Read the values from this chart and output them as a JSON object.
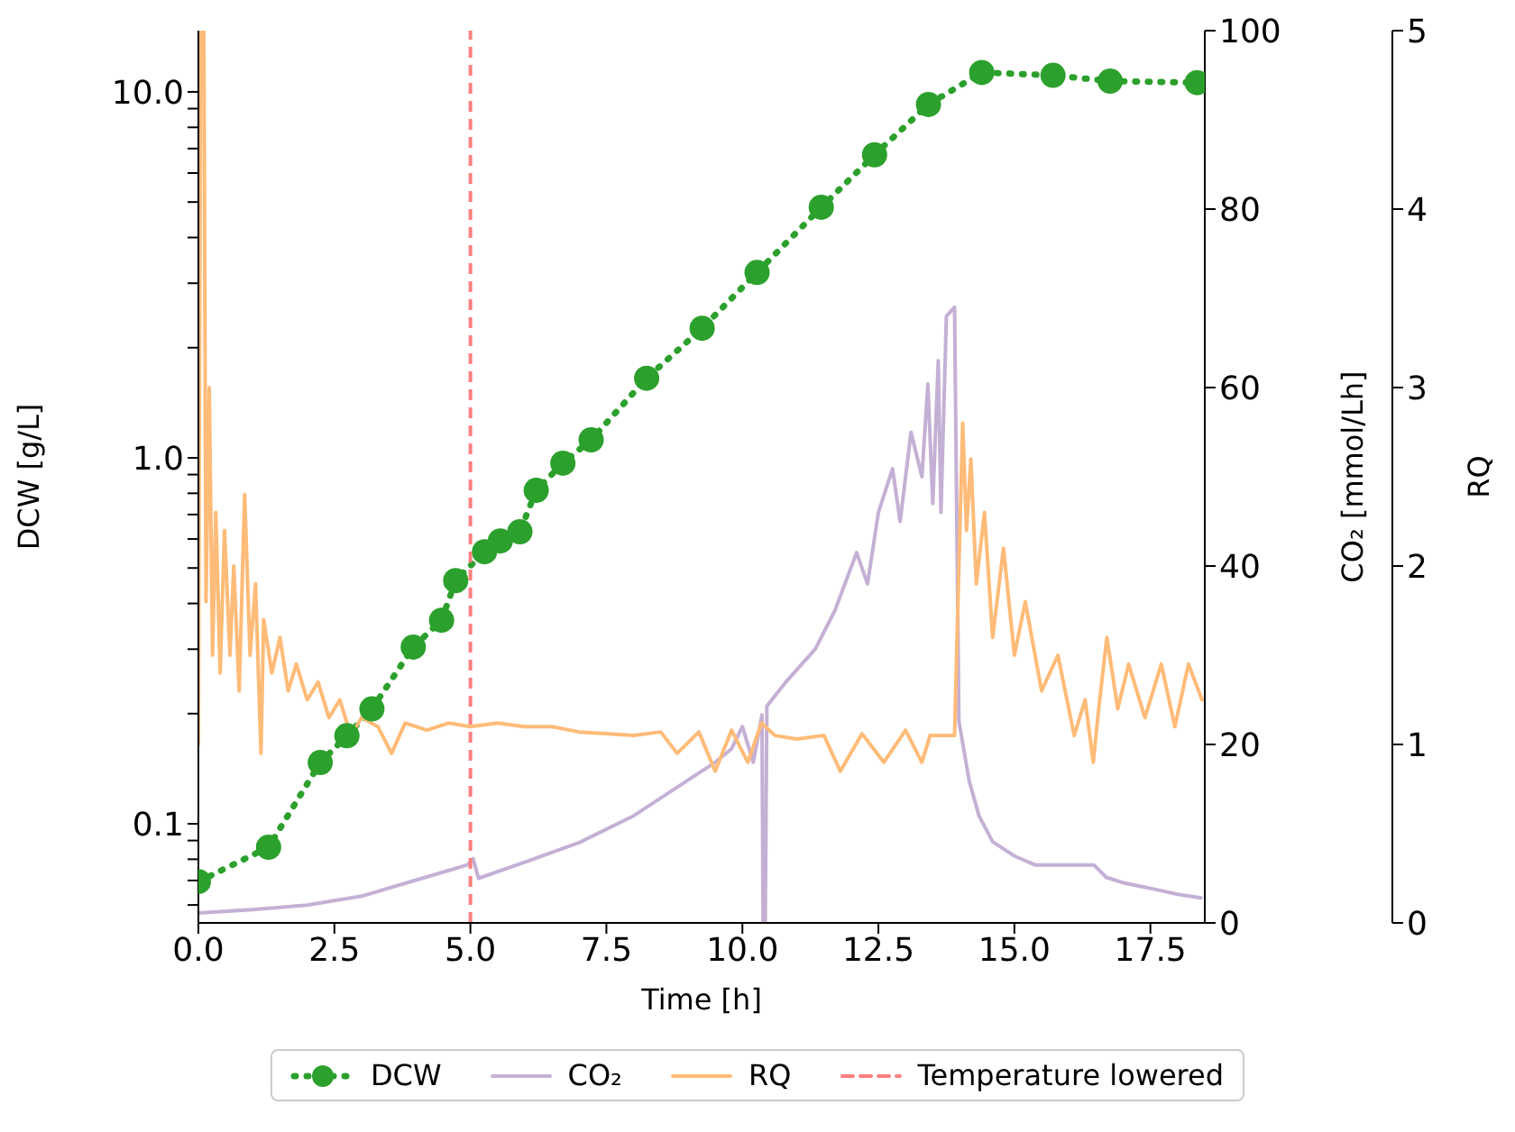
{
  "chart_data": {
    "type": "line",
    "xlabel": "Time [h]",
    "ylabel": "DCW [g/L]",
    "y2label": "CO₂ [mmol/Lh]",
    "y3label": "RQ",
    "log": "y",
    "grid": false,
    "legend": "bottom",
    "xlim": [
      0,
      18.5
    ],
    "xticks": [
      {
        "value": 0,
        "label": "0.0"
      },
      2.5,
      {
        "value": 5,
        "label": "5.0"
      },
      7.5,
      {
        "value": 10,
        "label": "10.0"
      },
      12.5,
      {
        "value": 15,
        "label": "15.0"
      },
      17.5
    ],
    "ylim": [
      0.0536,
      14.7
    ],
    "yticks": [
      {
        "value": 0.06,
        "label": null
      },
      {
        "value": 0.07,
        "label": null
      },
      {
        "value": 0.08,
        "label": null
      },
      {
        "value": 0.09,
        "label": null
      },
      0.1,
      {
        "value": 0.2,
        "label": null
      },
      {
        "value": 0.3,
        "label": null
      },
      {
        "value": 0.4,
        "label": null
      },
      {
        "value": 0.5,
        "label": null
      },
      {
        "value": 0.6,
        "label": null
      },
      {
        "value": 0.7,
        "label": null
      },
      {
        "value": 0.8,
        "label": null
      },
      {
        "value": 0.9,
        "label": null
      },
      {
        "value": 1,
        "label": "1.0"
      },
      {
        "value": 2,
        "label": null
      },
      {
        "value": 3,
        "label": null
      },
      {
        "value": 4,
        "label": null
      },
      {
        "value": 5,
        "label": null
      },
      {
        "value": 6,
        "label": null
      },
      {
        "value": 7,
        "label": null
      },
      {
        "value": 8,
        "label": null
      },
      {
        "value": 9,
        "label": null
      },
      {
        "value": 10,
        "label": "10.0"
      }
    ],
    "y2lim": [
      0,
      100
    ],
    "y2ticks": [
      0,
      20,
      40,
      60,
      80,
      100
    ],
    "y3lim": [
      0,
      5
    ],
    "y3ticks": [
      0,
      1,
      2,
      3,
      4,
      5
    ],
    "ref_lines": [
      {
        "axis": "x",
        "value": 5,
        "label": "Temperature lowered",
        "color": "#ff7f7f",
        "line_style": "dashed"
      }
    ],
    "series": [
      {
        "name": "DCW",
        "color": "#2ca02c",
        "marker": "circle",
        "line_style": "dotted",
        "x": [
          0.0,
          1.29,
          2.24,
          2.73,
          3.19,
          3.95,
          4.47,
          4.73,
          5.26,
          5.55,
          5.91,
          6.21,
          6.7,
          7.22,
          8.24,
          9.26,
          10.27,
          11.45,
          12.43,
          13.42,
          14.4,
          15.71,
          16.76,
          18.36
        ],
        "values": [
          0.0695,
          0.0863,
          0.147,
          0.174,
          0.206,
          0.304,
          0.36,
          0.462,
          0.554,
          0.593,
          0.628,
          0.815,
          0.967,
          1.12,
          1.65,
          2.26,
          3.21,
          4.84,
          6.73,
          9.24,
          11.3,
          11.1,
          10.7,
          10.6
        ]
      },
      {
        "name": "CO₂",
        "axis": "y2",
        "color": "#c5b0d5",
        "marker": "none",
        "line_style": "solid",
        "x": [
          0.0,
          1.0,
          2.0,
          3.0,
          4.0,
          4.95,
          5.05,
          5.15,
          6.0,
          7.0,
          8.0,
          9.0,
          9.5,
          9.8,
          10.0,
          10.2,
          10.36,
          10.38,
          10.42,
          10.45,
          10.8,
          11.34,
          11.7,
          12.1,
          12.3,
          12.5,
          12.76,
          12.9,
          13.1,
          13.3,
          13.41,
          13.5,
          13.6,
          13.65,
          13.75,
          13.9,
          13.98,
          14.17,
          14.35,
          14.6,
          15.0,
          15.38,
          16.0,
          16.46,
          16.69,
          17.0,
          17.56,
          18.0,
          18.43
        ],
        "values": [
          1.1,
          1.5,
          2.0,
          3.0,
          4.8,
          6.5,
          7.2,
          5.0,
          6.8,
          9.0,
          12.0,
          16.0,
          18.0,
          19.5,
          22.0,
          18.0,
          23.3,
          0,
          0,
          24.3,
          27.0,
          30.7,
          35.0,
          41.5,
          38.0,
          46.0,
          50.9,
          45.0,
          55.0,
          50.0,
          60.4,
          47.0,
          63.0,
          46.0,
          68.0,
          69.0,
          22.6,
          15.9,
          12.0,
          9.1,
          7.5,
          6.5,
          6.5,
          6.5,
          5.1,
          4.5,
          3.8,
          3.2,
          2.8
        ]
      },
      {
        "name": "RQ",
        "axis": "y3",
        "color": "#ffbb78",
        "marker": "none",
        "line_style": "solid",
        "x": [
          0.0,
          0.04,
          0.1,
          0.14,
          0.2,
          0.26,
          0.32,
          0.4,
          0.48,
          0.58,
          0.65,
          0.75,
          0.85,
          0.95,
          1.05,
          1.15,
          1.2,
          1.35,
          1.5,
          1.65,
          1.8,
          2.0,
          2.2,
          2.4,
          2.6,
          2.8,
          3.0,
          3.3,
          3.55,
          3.8,
          4.2,
          4.6,
          5.0,
          5.5,
          6.0,
          6.5,
          7.0,
          7.5,
          8.0,
          8.5,
          8.8,
          9.2,
          9.5,
          9.8,
          10.1,
          10.35,
          10.6,
          11.0,
          11.5,
          11.8,
          12.2,
          12.6,
          13.0,
          13.3,
          13.45,
          13.9,
          13.98,
          14.05,
          14.12,
          14.2,
          14.3,
          14.45,
          14.6,
          14.8,
          15.0,
          15.2,
          15.5,
          15.8,
          16.1,
          16.3,
          16.45,
          16.55,
          16.7,
          16.9,
          17.1,
          17.4,
          17.7,
          17.95,
          18.2,
          18.45
        ],
        "values": [
          1.0,
          5.0,
          5.0,
          1.8,
          3.0,
          1.5,
          2.3,
          1.4,
          2.2,
          1.5,
          2.0,
          1.3,
          2.4,
          1.5,
          1.9,
          0.95,
          1.7,
          1.4,
          1.6,
          1.3,
          1.45,
          1.25,
          1.35,
          1.15,
          1.25,
          1.05,
          1.15,
          1.1,
          0.95,
          1.12,
          1.08,
          1.12,
          1.1,
          1.12,
          1.1,
          1.1,
          1.07,
          1.06,
          1.05,
          1.07,
          0.95,
          1.07,
          0.85,
          1.08,
          0.9,
          1.12,
          1.05,
          1.03,
          1.05,
          0.85,
          1.06,
          0.9,
          1.08,
          0.9,
          1.05,
          1.05,
          2.0,
          2.8,
          2.2,
          2.6,
          1.9,
          2.3,
          1.6,
          2.1,
          1.5,
          1.8,
          1.3,
          1.5,
          1.05,
          1.25,
          0.9,
          1.2,
          1.6,
          1.2,
          1.45,
          1.15,
          1.45,
          1.1,
          1.45,
          1.25
        ]
      }
    ]
  }
}
